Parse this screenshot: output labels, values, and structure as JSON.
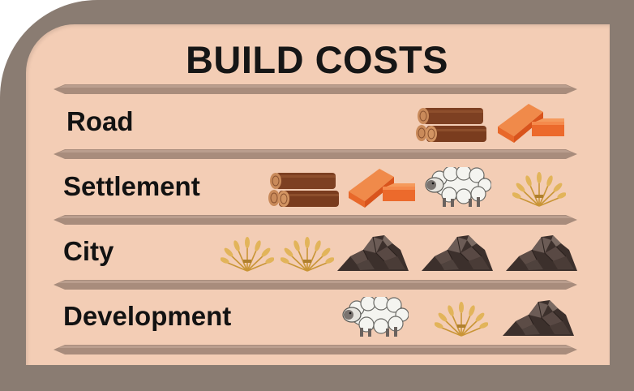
{
  "title": "BUILD COSTS",
  "resource_icons": {
    "lumber": "log-pile-icon",
    "brick": "brick-icon",
    "wool": "sheep-icon",
    "grain": "wheat-icon",
    "ore": "ore-rock-icon"
  },
  "rows": [
    {
      "label": "Road",
      "cost": [
        "lumber",
        "brick"
      ]
    },
    {
      "label": "Settlement",
      "cost": [
        "lumber",
        "brick",
        "wool",
        "grain"
      ]
    },
    {
      "label": "City",
      "cost": [
        "grain",
        "grain",
        "ore",
        "ore",
        "ore"
      ]
    },
    {
      "label": "Development",
      "cost": [
        "wool",
        "grain",
        "ore"
      ]
    }
  ],
  "colors": {
    "frame": "#8a7c72",
    "card": "#f3cdb5",
    "divider": "#a88c7c",
    "lumber": "#8a4a2a",
    "brick": "#ec6a2c",
    "wool": "#f2f2ee",
    "grain": "#dca94a",
    "ore": "#4a3c36"
  }
}
